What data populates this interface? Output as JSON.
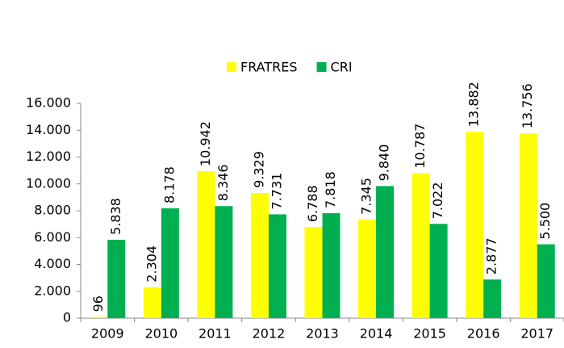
{
  "chart_data": {
    "type": "bar",
    "categories": [
      "2009",
      "2010",
      "2011",
      "2012",
      "2013",
      "2014",
      "2015",
      "2016",
      "2017"
    ],
    "series": [
      {
        "name": "FRATRES",
        "color": "#ffff00",
        "values": [
          96,
          2304,
          10942,
          9329,
          6788,
          7345,
          10787,
          13882,
          13756
        ],
        "value_labels": [
          "96",
          "2.304",
          "10.942",
          "9.329",
          "6.788",
          "7.345",
          "10.787",
          "13.882",
          "13.756"
        ]
      },
      {
        "name": "CRI",
        "color": "#00b050",
        "values": [
          5838,
          8178,
          8346,
          7731,
          7818,
          9840,
          7022,
          2877,
          5500
        ],
        "value_labels": [
          "5.838",
          "8.178",
          "8.346",
          "7.731",
          "7.818",
          "9.840",
          "7.022",
          "2.877",
          "5.500"
        ]
      }
    ],
    "ylim": [
      0,
      16000
    ],
    "yticks": [
      0,
      {
        "value": 2000,
        "label": "2.000"
      },
      {
        "value": 4000,
        "label": "4.000"
      },
      {
        "value": 6000,
        "label": "6.000"
      },
      {
        "value": 8000,
        "label": "8.000"
      },
      {
        "value": 10000,
        "label": "10.000"
      },
      {
        "value": 12000,
        "label": "12.000"
      },
      {
        "value": 14000,
        "label": "14.000"
      },
      {
        "value": 16000,
        "label": "16.000"
      }
    ],
    "legend": "top",
    "grid": false
  }
}
